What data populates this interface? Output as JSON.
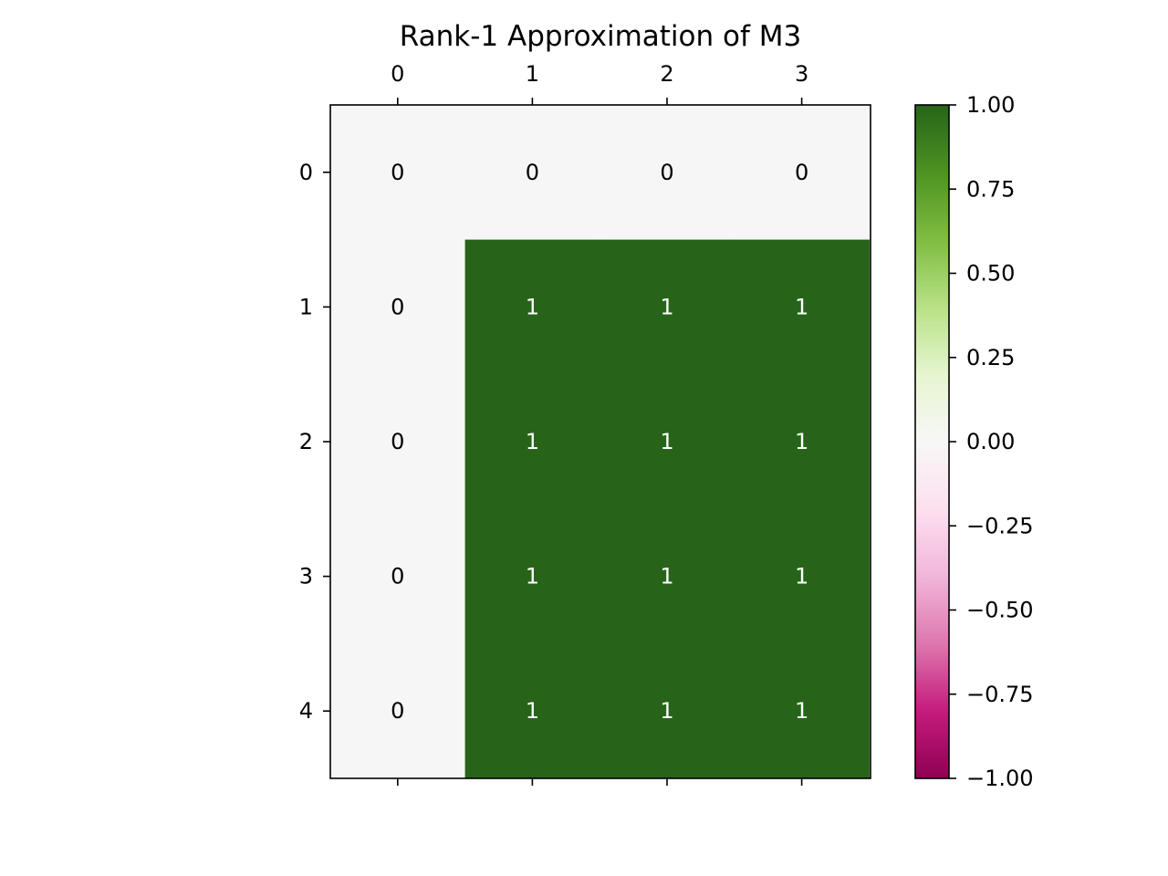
{
  "chart_data": {
    "type": "heatmap",
    "title": "Rank-1 Approximation of M3",
    "x_ticks": [
      "0",
      "1",
      "2",
      "3"
    ],
    "y_ticks": [
      "0",
      "1",
      "2",
      "3",
      "4"
    ],
    "values": [
      [
        0,
        0,
        0,
        0
      ],
      [
        0,
        1,
        1,
        1
      ],
      [
        0,
        1,
        1,
        1
      ],
      [
        0,
        1,
        1,
        1
      ],
      [
        0,
        1,
        1,
        1
      ]
    ],
    "cell_labels": [
      [
        "0",
        "0",
        "0",
        "0"
      ],
      [
        "0",
        "1",
        "1",
        "1"
      ],
      [
        "0",
        "1",
        "1",
        "1"
      ],
      [
        "0",
        "1",
        "1",
        "1"
      ],
      [
        "0",
        "1",
        "1",
        "1"
      ]
    ],
    "colormap": "PiYG",
    "vmin": -1.0,
    "vmax": 1.0,
    "colorbar_ticks": [
      {
        "value": 1.0,
        "label": "1.00"
      },
      {
        "value": 0.75,
        "label": "0.75"
      },
      {
        "value": 0.5,
        "label": "0.50"
      },
      {
        "value": 0.25,
        "label": "0.25"
      },
      {
        "value": 0.0,
        "label": "0.00"
      },
      {
        "value": -0.25,
        "label": "−0.25"
      },
      {
        "value": -0.5,
        "label": "−0.50"
      },
      {
        "value": -0.75,
        "label": "−0.75"
      },
      {
        "value": -1.0,
        "label": "−1.00"
      }
    ],
    "colorbar_placement": "right",
    "x_tick_position": "top",
    "grid": false,
    "colors": {
      "zero": "#f6f6f6",
      "one": "#276419",
      "dark_text": "#000000",
      "light_text": "#ffffff"
    }
  }
}
